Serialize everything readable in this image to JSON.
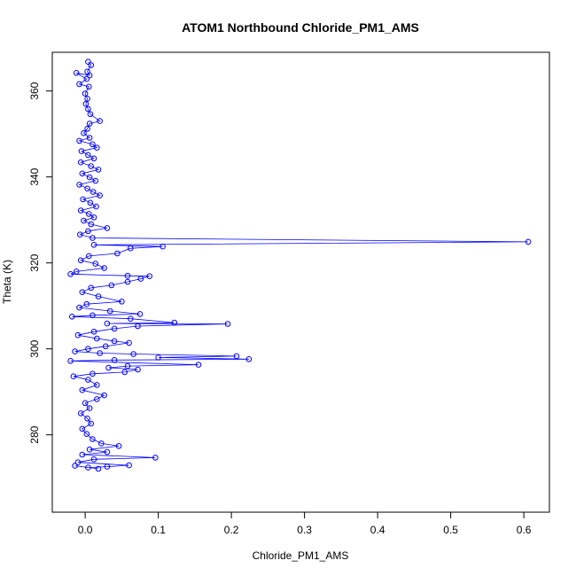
{
  "chart_data": {
    "type": "scatter",
    "title": "ATOM1 Northbound Chloride_PM1_AMS",
    "xlabel": "Chloride_PM1_AMS",
    "ylabel": "Theta (K)",
    "xlim": [
      -0.045,
      0.635
    ],
    "ylim": [
      262,
      369
    ],
    "xticks": [
      0.0,
      0.1,
      0.2,
      0.3,
      0.4,
      0.5,
      0.6
    ],
    "xtick_labels": [
      "0.0",
      "0.1",
      "0.2",
      "0.3",
      "0.4",
      "0.5",
      "0.6"
    ],
    "yticks": [
      280,
      300,
      320,
      340,
      360
    ],
    "ytick_labels": [
      "280",
      "300",
      "320",
      "340",
      "360"
    ],
    "grid": false,
    "legend": "none",
    "series": [
      {
        "color": "#0000ff",
        "marker": "open-circle",
        "line": true,
        "points": [
          {
            "x": 0.004,
            "y": 366.8
          },
          {
            "x": 0.008,
            "y": 366.0
          },
          {
            "x": 0.003,
            "y": 364.5
          },
          {
            "x": 0.006,
            "y": 363.6
          },
          {
            "x": -0.012,
            "y": 364.2
          },
          {
            "x": 0.002,
            "y": 362.8
          },
          {
            "x": -0.008,
            "y": 361.6
          },
          {
            "x": 0.005,
            "y": 361.0
          },
          {
            "x": 0.0,
            "y": 359.4
          },
          {
            "x": 0.003,
            "y": 358.2
          },
          {
            "x": 0.001,
            "y": 357.0
          },
          {
            "x": 0.004,
            "y": 355.8
          },
          {
            "x": 0.007,
            "y": 354.6
          },
          {
            "x": 0.02,
            "y": 353.0
          },
          {
            "x": 0.006,
            "y": 352.4
          },
          {
            "x": 0.003,
            "y": 351.2
          },
          {
            "x": -0.002,
            "y": 350.2
          },
          {
            "x": 0.006,
            "y": 349.1
          },
          {
            "x": -0.008,
            "y": 348.4
          },
          {
            "x": 0.01,
            "y": 347.6
          },
          {
            "x": 0.016,
            "y": 346.8
          },
          {
            "x": -0.005,
            "y": 346.0
          },
          {
            "x": 0.004,
            "y": 345.1
          },
          {
            "x": 0.012,
            "y": 344.3
          },
          {
            "x": -0.006,
            "y": 343.4
          },
          {
            "x": 0.008,
            "y": 342.5
          },
          {
            "x": 0.018,
            "y": 341.7
          },
          {
            "x": -0.004,
            "y": 340.8
          },
          {
            "x": 0.006,
            "y": 339.9
          },
          {
            "x": 0.014,
            "y": 339.1
          },
          {
            "x": -0.008,
            "y": 338.2
          },
          {
            "x": 0.003,
            "y": 337.3
          },
          {
            "x": 0.011,
            "y": 336.5
          },
          {
            "x": 0.02,
            "y": 335.7
          },
          {
            "x": -0.003,
            "y": 334.8
          },
          {
            "x": 0.007,
            "y": 334.0
          },
          {
            "x": 0.015,
            "y": 333.1
          },
          {
            "x": -0.006,
            "y": 332.2
          },
          {
            "x": 0.005,
            "y": 331.4
          },
          {
            "x": 0.012,
            "y": 330.6
          },
          {
            "x": -0.002,
            "y": 329.8
          },
          {
            "x": 0.008,
            "y": 329.0
          },
          {
            "x": 0.03,
            "y": 328.1
          },
          {
            "x": 0.004,
            "y": 327.4
          },
          {
            "x": -0.007,
            "y": 326.6
          },
          {
            "x": 0.01,
            "y": 325.8
          },
          {
            "x": 0.606,
            "y": 324.9
          },
          {
            "x": 0.012,
            "y": 324.2
          },
          {
            "x": 0.106,
            "y": 323.8
          },
          {
            "x": 0.062,
            "y": 323.4
          },
          {
            "x": 0.044,
            "y": 322.2
          },
          {
            "x": 0.005,
            "y": 321.6
          },
          {
            "x": -0.006,
            "y": 320.6
          },
          {
            "x": 0.014,
            "y": 319.8
          },
          {
            "x": 0.026,
            "y": 318.8
          },
          {
            "x": -0.012,
            "y": 318.0
          },
          {
            "x": -0.02,
            "y": 317.4
          },
          {
            "x": 0.058,
            "y": 317.0
          },
          {
            "x": 0.088,
            "y": 316.9
          },
          {
            "x": 0.076,
            "y": 316.3
          },
          {
            "x": 0.058,
            "y": 315.6
          },
          {
            "x": 0.036,
            "y": 314.8
          },
          {
            "x": 0.008,
            "y": 314.2
          },
          {
            "x": -0.004,
            "y": 313.2
          },
          {
            "x": 0.018,
            "y": 312.2
          },
          {
            "x": 0.05,
            "y": 311.0
          },
          {
            "x": 0.002,
            "y": 310.4
          },
          {
            "x": -0.008,
            "y": 309.6
          },
          {
            "x": 0.034,
            "y": 308.8
          },
          {
            "x": 0.075,
            "y": 308.1
          },
          {
            "x": 0.01,
            "y": 307.8
          },
          {
            "x": -0.018,
            "y": 307.5
          },
          {
            "x": 0.062,
            "y": 307.0
          },
          {
            "x": 0.122,
            "y": 306.1
          },
          {
            "x": 0.03,
            "y": 305.9
          },
          {
            "x": 0.195,
            "y": 305.8
          },
          {
            "x": 0.072,
            "y": 305.3
          },
          {
            "x": 0.04,
            "y": 304.7
          },
          {
            "x": 0.012,
            "y": 304.0
          },
          {
            "x": -0.01,
            "y": 303.2
          },
          {
            "x": 0.016,
            "y": 302.4
          },
          {
            "x": 0.04,
            "y": 301.8
          },
          {
            "x": 0.06,
            "y": 301.4
          },
          {
            "x": 0.028,
            "y": 300.6
          },
          {
            "x": 0.004,
            "y": 300.0
          },
          {
            "x": -0.014,
            "y": 299.4
          },
          {
            "x": 0.02,
            "y": 299.0
          },
          {
            "x": 0.066,
            "y": 298.8
          },
          {
            "x": 0.207,
            "y": 298.3
          },
          {
            "x": 0.1,
            "y": 298.0
          },
          {
            "x": 0.224,
            "y": 297.6
          },
          {
            "x": 0.04,
            "y": 297.4
          },
          {
            "x": -0.02,
            "y": 297.2
          },
          {
            "x": 0.155,
            "y": 296.3
          },
          {
            "x": 0.058,
            "y": 296.0
          },
          {
            "x": 0.032,
            "y": 295.6
          },
          {
            "x": 0.072,
            "y": 295.2
          },
          {
            "x": 0.054,
            "y": 294.6
          },
          {
            "x": 0.01,
            "y": 294.2
          },
          {
            "x": -0.016,
            "y": 293.6
          },
          {
            "x": 0.004,
            "y": 292.8
          },
          {
            "x": 0.016,
            "y": 291.6
          },
          {
            "x": -0.004,
            "y": 290.4
          },
          {
            "x": 0.026,
            "y": 289.2
          },
          {
            "x": 0.016,
            "y": 288.3
          },
          {
            "x": 0.0,
            "y": 287.4
          },
          {
            "x": 0.006,
            "y": 286.2
          },
          {
            "x": -0.006,
            "y": 285.0
          },
          {
            "x": 0.003,
            "y": 283.8
          },
          {
            "x": 0.008,
            "y": 282.6
          },
          {
            "x": -0.004,
            "y": 281.4
          },
          {
            "x": 0.002,
            "y": 280.2
          },
          {
            "x": 0.01,
            "y": 279.0
          },
          {
            "x": 0.022,
            "y": 278.0
          },
          {
            "x": 0.046,
            "y": 277.4
          },
          {
            "x": 0.006,
            "y": 276.6
          },
          {
            "x": 0.03,
            "y": 276.0
          },
          {
            "x": -0.004,
            "y": 275.4
          },
          {
            "x": 0.096,
            "y": 274.7
          },
          {
            "x": 0.012,
            "y": 274.3
          },
          {
            "x": -0.01,
            "y": 273.6
          },
          {
            "x": 0.06,
            "y": 272.9
          },
          {
            "x": 0.03,
            "y": 272.6
          },
          {
            "x": 0.004,
            "y": 272.4
          },
          {
            "x": -0.014,
            "y": 272.8
          },
          {
            "x": 0.018,
            "y": 272.1
          }
        ]
      }
    ]
  }
}
